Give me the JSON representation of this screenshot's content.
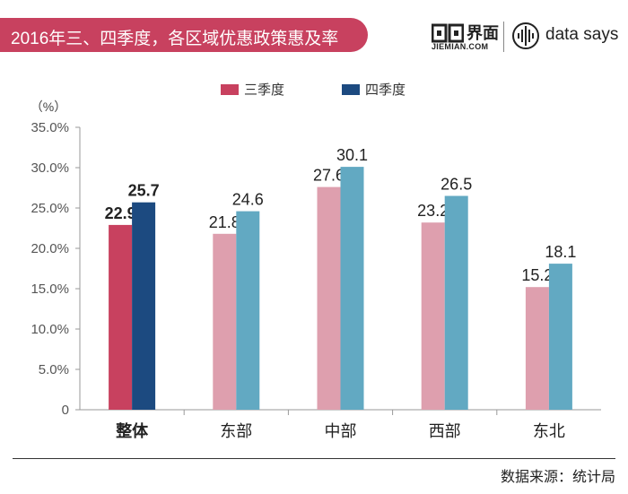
{
  "title": "2016年三、四季度，各区域优惠政策惠及率",
  "brand": {
    "jiemian": "界面",
    "jiemian_sub": "JIEMIAN.COM",
    "datasays": "data says",
    "jiemian_icon": "jiemian-logo-icon",
    "datasays_icon": "datasays-logo-icon"
  },
  "source": "数据来源：统计局",
  "chart_data": {
    "type": "bar",
    "categories": [
      "整体",
      "东部",
      "中部",
      "西部",
      "东北"
    ],
    "series": [
      {
        "name": "三季度",
        "values": [
          22.9,
          21.8,
          27.6,
          23.2,
          15.2
        ]
      },
      {
        "name": "四季度",
        "values": [
          25.7,
          24.6,
          30.1,
          26.5,
          18.1
        ]
      }
    ],
    "unit_label": "（%）",
    "yticks": [
      "0",
      "5.0%",
      "10.0%",
      "15.0%",
      "20.0%",
      "25.0%",
      "30.0%",
      "35.0%"
    ],
    "ylim": [
      0,
      35
    ],
    "legend_position": "top-center",
    "colors": {
      "legend": [
        "#c8415f",
        "#1c4a80"
      ],
      "highlight": [
        "#c8415f",
        "#1c4a80"
      ],
      "normal": [
        "#de9fae",
        "#62a9c2"
      ]
    },
    "highlight_category": "整体"
  }
}
